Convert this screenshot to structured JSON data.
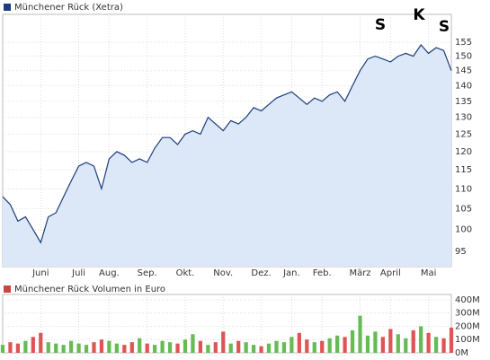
{
  "chart_data": [
    {
      "type": "area",
      "log": true,
      "grid": true,
      "line_color": "#1c3d7a",
      "fill_color": "#dce8f8",
      "series_name": "Münchener Rück (Xetra)",
      "annotations": [
        "S",
        "K",
        "S"
      ],
      "categories": [
        null,
        null,
        null,
        null,
        null,
        "Juni",
        null,
        null,
        null,
        null,
        "Juli",
        null,
        null,
        null,
        "Aug.",
        null,
        null,
        null,
        null,
        "Sep.",
        null,
        null,
        null,
        null,
        "Okt.",
        null,
        null,
        null,
        null,
        "Nov.",
        null,
        null,
        null,
        null,
        "Dez.",
        null,
        null,
        null,
        "Jan.",
        null,
        null,
        null,
        "Feb.",
        null,
        null,
        null,
        null,
        "März",
        null,
        null,
        null,
        "April",
        null,
        null,
        null,
        null,
        "Mai",
        null,
        null,
        null
      ],
      "values": [
        108,
        106,
        102,
        103,
        100,
        97,
        103,
        104,
        108,
        112,
        116,
        117,
        116,
        110,
        118,
        120,
        119,
        117,
        118,
        117,
        121,
        124,
        124,
        122,
        125,
        126,
        125,
        130,
        128,
        126,
        129,
        128,
        130,
        133,
        132,
        134,
        136,
        137,
        138,
        136,
        134,
        136,
        135,
        137,
        138,
        135,
        140,
        145,
        149,
        150,
        149,
        148,
        150,
        151,
        150,
        154,
        151,
        153,
        152,
        145
      ],
      "ylim": [
        91.7,
        165.4
      ],
      "yticks": [
        95,
        100,
        105,
        110,
        115,
        120,
        125,
        130,
        135,
        140,
        145,
        150,
        155
      ]
    },
    {
      "type": "bar",
      "grid": true,
      "series_name": "Münchener Rück Volumen in Euro",
      "color": "#cc4444",
      "up_color": "#66bb55",
      "down_color": "#dd5555",
      "values": [
        60,
        80,
        70,
        90,
        120,
        150,
        80,
        70,
        60,
        90,
        70,
        60,
        80,
        100,
        90,
        70,
        60,
        80,
        110,
        70,
        60,
        90,
        80,
        70,
        100,
        140,
        90,
        60,
        80,
        160,
        70,
        90,
        80,
        60,
        50,
        70,
        90,
        80,
        120,
        150,
        100,
        80,
        90,
        110,
        130,
        120,
        170,
        280,
        130,
        160,
        120,
        180,
        140,
        110,
        170,
        200,
        150,
        120,
        110,
        190
      ],
      "ylim": [
        0,
        440
      ],
      "yticks": [
        {
          "value": 0,
          "label": "0M"
        },
        {
          "value": 100,
          "label": "100M"
        },
        {
          "value": 200,
          "label": "200M"
        },
        {
          "value": 300,
          "label": "300M"
        },
        {
          "value": 400,
          "label": "400M"
        }
      ]
    }
  ]
}
